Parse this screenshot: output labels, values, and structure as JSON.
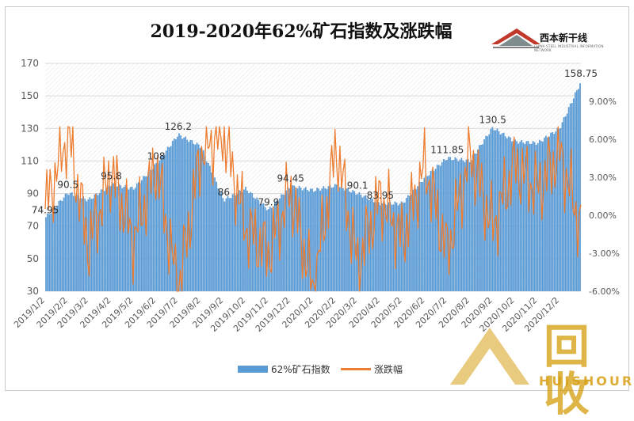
{
  "colors": {
    "bars": "#5b9bd5",
    "line": "#ed7d31",
    "grid": "#d9d9d9",
    "text": "#595959"
  },
  "brand": {
    "name": "西本新干线",
    "tagline": "CHINA STEEL INDUSTRIAL INFORMATION NETWORK"
  },
  "watermark": {
    "text": "回收",
    "latin": "HUISHOUREN"
  },
  "chart_data": {
    "type": "bar",
    "title": "2019-2020年62%矿石指数及涨跌幅",
    "xlabel": "",
    "ylabel": "",
    "ylim": [
      30,
      170
    ],
    "y_ticks": [
      "170",
      "150",
      "130",
      "110",
      "90",
      "70",
      "50",
      "30"
    ],
    "y2lim": [
      -6,
      12
    ],
    "y2_ticks": [
      "9.00%",
      "6.00%",
      "3.00%",
      "0.00%",
      "-3.00%",
      "-6.00%"
    ],
    "x_ticks": [
      "2019/1/2",
      "2019/2/2",
      "2019/3/2",
      "2019/4/2",
      "2019/5/2",
      "2019/6/2",
      "2019/7/2",
      "2019/8/2",
      "2019/9/2",
      "2019/10/2",
      "2019/11/2",
      "2019/12/2",
      "2020/1/2",
      "2020/2/2",
      "2020/3/2",
      "2020/4/2",
      "2020/5/2",
      "2020/6/2",
      "2020/7/2",
      "2020/8/2",
      "2020/9/2",
      "2020/10/2",
      "2020/11/2",
      "2020/12/2"
    ],
    "grid": true,
    "legend_position": "bottom",
    "series": [
      {
        "name": "62%矿石指数",
        "type": "bar",
        "axis": "left",
        "x": [
          "2019/1/2",
          "2019/2/2",
          "2019/3/2",
          "2019/4/2",
          "2019/5/2",
          "2019/6/2",
          "2019/7/2",
          "2019/8/2",
          "2019/9/2",
          "2019/10/2",
          "2019/11/2",
          "2019/12/2",
          "2020/1/2",
          "2020/2/2",
          "2020/3/2",
          "2020/4/2",
          "2020/5/2",
          "2020/6/2",
          "2020/7/2",
          "2020/8/2",
          "2020/9/2",
          "2020/10/2",
          "2020/11/2",
          "2020/12/2",
          "2020/12/31"
        ],
        "values": [
          74.95,
          90.5,
          86,
          95.8,
          93,
          108,
          126.2,
          119,
          86,
          93,
          79.9,
          94.45,
          92,
          95,
          90.1,
          83.95,
          84,
          100,
          111.85,
          110,
          130.5,
          122,
          121,
          130,
          158.75
        ]
      },
      {
        "name": "涨跌幅",
        "type": "line",
        "axis": "right",
        "x": [
          "2019/1/2",
          "2019/2/2",
          "2019/3/2",
          "2019/4/2",
          "2019/5/2",
          "2019/6/2",
          "2019/7/2",
          "2019/8/2",
          "2019/9/2",
          "2019/10/2",
          "2019/11/2",
          "2019/12/2",
          "2020/1/2",
          "2020/2/2",
          "2020/3/2",
          "2020/4/2",
          "2020/5/2",
          "2020/6/2",
          "2020/7/2",
          "2020/8/2",
          "2020/9/2",
          "2020/10/2",
          "2020/11/2",
          "2020/12/2",
          "2020/12/31"
        ],
        "values": [
          0.5,
          6.5,
          -2.5,
          3.5,
          -2,
          4,
          -6,
          5,
          6.5,
          -1,
          -3,
          2,
          -6,
          5.5,
          -4,
          1.5,
          -2,
          4,
          -3,
          5,
          -1,
          4,
          2,
          5,
          -1
        ]
      }
    ],
    "annotations": [
      {
        "text": "74.95",
        "x": "2019/1/2",
        "y": 74.95
      },
      {
        "text": "90.5",
        "x": "2019/2/2",
        "y": 90.5
      },
      {
        "text": "95.8",
        "x": "2019/4/2",
        "y": 95.8
      },
      {
        "text": "108",
        "x": "2019/6/2",
        "y": 108
      },
      {
        "text": "126.2",
        "x": "2019/7/2",
        "y": 126.2
      },
      {
        "text": "86",
        "x": "2019/9/2",
        "y": 86
      },
      {
        "text": "79.9",
        "x": "2019/11/2",
        "y": 79.9
      },
      {
        "text": "94.45",
        "x": "2019/12/2",
        "y": 94.45
      },
      {
        "text": "90.1",
        "x": "2020/3/2",
        "y": 90.1
      },
      {
        "text": "83.95",
        "x": "2020/4/2",
        "y": 83.95
      },
      {
        "text": "111.85",
        "x": "2020/7/2",
        "y": 111.85
      },
      {
        "text": "130.5",
        "x": "2020/9/2",
        "y": 130.5
      },
      {
        "text": "158.75",
        "x": "2020/12/31",
        "y": 158.75
      }
    ]
  }
}
